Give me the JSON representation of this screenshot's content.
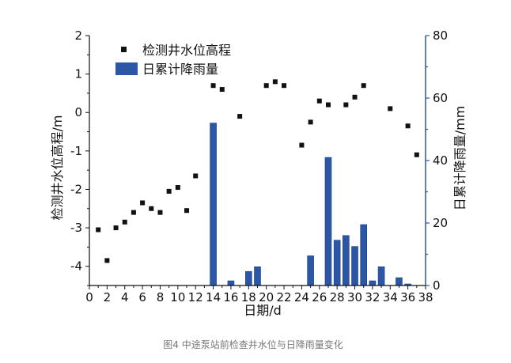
{
  "caption": "图4 中途泵站前检查井水位与日降雨量变化",
  "chart_data": {
    "type": "bar+scatter",
    "xlabel": "日期/d",
    "ylabel_left": "检测井水位高程/m",
    "ylabel_right": "日累计降雨量/mm",
    "xlim": [
      0,
      38
    ],
    "ylim_left": [
      -4.5,
      2
    ],
    "ylim_right": [
      0,
      80
    ],
    "x_ticks": [
      "0",
      "2",
      "4",
      "6",
      "8",
      "10",
      "12",
      "14",
      "16",
      "18",
      "20",
      "22",
      "24",
      "26",
      "28",
      "30",
      "32",
      "34",
      "36",
      "38"
    ],
    "y_left_ticks": [
      "-4",
      "-3",
      "-2",
      "-1",
      "0",
      "1",
      "2"
    ],
    "y_right_ticks": [
      "0",
      "20",
      "40",
      "60",
      "80"
    ],
    "legend": {
      "position": "top-left",
      "scatter_label": "检测井水位高程",
      "bar_label": "日累计降雨量"
    },
    "scatter_series": {
      "name": "检测井水位高程",
      "x": [
        1,
        2,
        3,
        4,
        5,
        6,
        7,
        8,
        9,
        10,
        11,
        12,
        14,
        15,
        17,
        20,
        21,
        22,
        24,
        25,
        26,
        27,
        29,
        30,
        31,
        34,
        36,
        37
      ],
      "y": [
        -3.05,
        -3.85,
        -3.0,
        -2.85,
        -2.6,
        -2.35,
        -2.5,
        -2.6,
        -2.05,
        -1.95,
        -2.55,
        -1.65,
        0.7,
        0.6,
        -0.1,
        0.7,
        0.8,
        0.7,
        -0.85,
        -0.25,
        0.3,
        0.2,
        0.2,
        0.4,
        0.7,
        0.1,
        -0.35,
        -1.1
      ]
    },
    "bar_series": {
      "name": "日累计降雨量",
      "x": [
        14,
        16,
        18,
        19,
        25,
        27,
        28,
        29,
        30,
        31,
        32,
        33,
        35,
        36
      ],
      "values": [
        52,
        1.5,
        4.5,
        6,
        9.5,
        41,
        14.5,
        16,
        12.5,
        19.5,
        1.5,
        6,
        2.5,
        0.5
      ]
    },
    "colors": {
      "bar": "#2b57a6",
      "scatter": "#111111",
      "axis_right": "#2b57a6",
      "axis_left": "#111111"
    }
  }
}
